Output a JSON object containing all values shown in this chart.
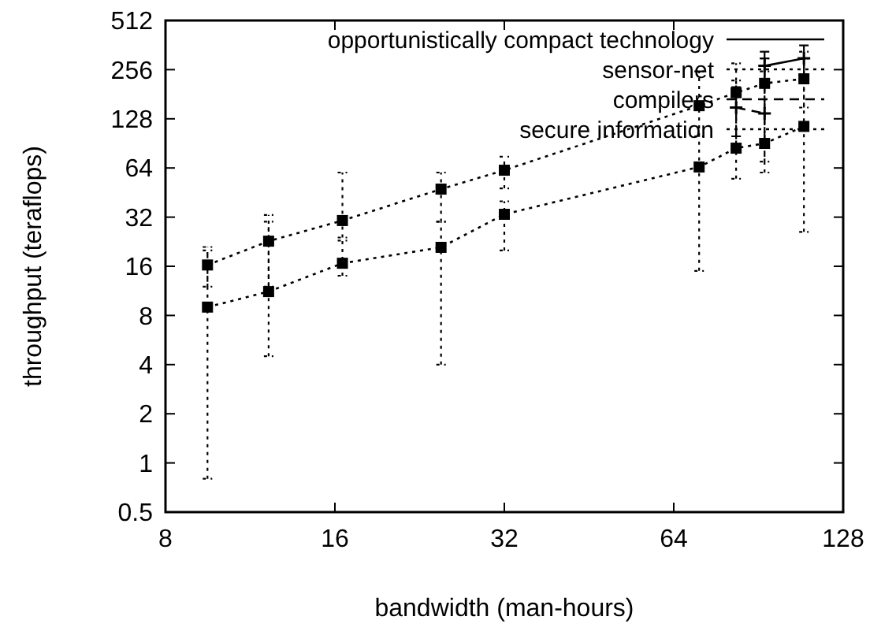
{
  "chart_data": {
    "type": "line",
    "xlabel": "bandwidth (man-hours)",
    "ylabel": "throughput (teraflops)",
    "log": "xy",
    "xlim": [
      8,
      128
    ],
    "xticks": [
      8,
      16,
      32,
      64,
      128
    ],
    "ylim": [
      0.5,
      512
    ],
    "yticks": [
      0.5,
      1,
      2,
      4,
      8,
      16,
      32,
      64,
      128,
      256,
      512
    ],
    "grid": false,
    "legend": "top right",
    "series": [
      {
        "name": "opportunistically compact technology",
        "color": "#000000",
        "line_style": "solid",
        "marker": "cross",
        "x": [
          92.8,
          109
        ],
        "values": [
          270,
          300
        ],
        "errors": [
          [
            200,
            330
          ],
          [
            230,
            360
          ]
        ]
      },
      {
        "name": "sensor-net",
        "color": "#000000",
        "line_style": "dotted",
        "marker": "square",
        "x": [
          9.5,
          12.2,
          16.5,
          24.7,
          32,
          71,
          82.6,
          92.8,
          109
        ],
        "values": [
          16.3,
          22.8,
          30.5,
          47.5,
          62,
          154,
          185,
          211,
          225
        ],
        "errors": [
          [
            12,
            21
          ],
          [
            12,
            33
          ],
          [
            24,
            60
          ],
          [
            30,
            60
          ],
          [
            48,
            75
          ],
          [
            100,
            250
          ],
          [
            90,
            280
          ],
          [
            60,
            300
          ],
          [
            150,
            330
          ]
        ]
      },
      {
        "name": "compilers",
        "color": "#000000",
        "line_style": "dashed",
        "marker": "cross",
        "x": [
          82.6,
          92.8
        ],
        "values": [
          150,
          138
        ],
        "errors": [
          [
            100,
            200
          ],
          [
            95,
            300
          ]
        ]
      },
      {
        "name": "secure information",
        "color": "#000000",
        "line_style": "dotted",
        "marker": "square",
        "x": [
          9.5,
          12.2,
          16.5,
          24.7,
          32,
          71,
          82.6,
          92.8,
          109
        ],
        "values": [
          9,
          11.2,
          16.7,
          20.9,
          33.3,
          64.9,
          84.6,
          90.5,
          115
        ],
        "errors": [
          [
            0.8,
            20
          ],
          [
            4.5,
            30
          ],
          [
            14,
            23
          ],
          [
            4,
            30
          ],
          [
            20,
            40
          ],
          [
            15,
            100
          ],
          [
            55,
            220
          ],
          [
            70,
            250
          ],
          [
            26,
            300
          ]
        ]
      }
    ]
  }
}
